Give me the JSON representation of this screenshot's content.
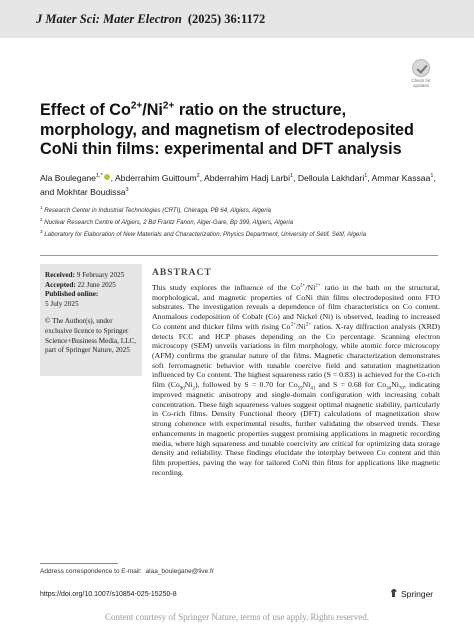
{
  "header": {
    "journal": "J Mater Sci: Mater Electron",
    "volume": "(2025) 36:1172"
  },
  "badge": {
    "icon": "check-for-updates-icon",
    "line1": "Check for",
    "line2": "updates"
  },
  "article": {
    "title_p1": "Effect of Co",
    "title_sup1": "2+",
    "title_p2": "/Ni",
    "title_sup2": "2+",
    "title_p3": " ratio on the structure, morphology, and magnetism of electrodeposited CoNi thin films: experimental and DFT analysis"
  },
  "authors": [
    {
      "name": "Ala Boulegane",
      "sup": "1,*"
    },
    {
      "name": "Abderrahim Guittoum",
      "sup": "2"
    },
    {
      "name": "Abderrahim Hadj Larbi",
      "sup": "1"
    },
    {
      "name": "Delloula Lakhdari",
      "sup": "1"
    },
    {
      "name": "Ammar Kassaa",
      "sup": "1"
    },
    {
      "name": "Mokhtar Boudissa",
      "sup": "3"
    }
  ],
  "authors_connector": ", and ",
  "affiliations": [
    {
      "num": "1",
      "text": "Research Center in Industrial Technologies (CRTI), Chéraga, PB 64, Algiers, Algeria"
    },
    {
      "num": "2",
      "text": "Nuclear Research Centre of Algiers, 2 Bd Frantz Fanon, Alger-Gare, Bp 399, Algiers, Algeria"
    },
    {
      "num": "3",
      "text": "Laboratory for Elaboration of New Materials and Characterization, Physics Department, University of Sétif, Sétif, Algeria"
    }
  ],
  "sidebar": {
    "received_label": "Received:",
    "received": "9 February 2025",
    "accepted_label": "Accepted:",
    "accepted": "22 June 2025",
    "published_label": "Published online:",
    "published": "5 July 2025",
    "copyright": "© The Author(s), under exclusive licence to Springer Science+Business Media, LLC, part of Springer Nature, 2025"
  },
  "abstract": {
    "heading": "ABSTRACT",
    "t1": "This study explores the influence of the Co",
    "s1": "2+",
    "t2": "/Ni",
    "s2": "2+",
    "t3": " ratio in the bath on the structural, morphological, and magnetic properties of CoNi thin films electrodeposited onto FTO substrates. The investigation reveals a dependence of film characteristics on Co content. Anomalous codeposition of Cobalt (Co) and Nickel (Ni) is observed, leading to increased Co content and thicker films with rising Co",
    "s3": "2+",
    "t4": "/Ni",
    "s4": "2+",
    "t5": " ratios. X-ray diffraction analysis (XRD) detects FCC and HCP phases depending on the Co percentage. Scanning electron microscopy (SEM) unveils variations in film morphology, while atomic force microscopy (AFM) confirms the granular nature of the films. Magnetic characterization demonstrates soft ferromagnetic behavior with tunable coercive field and saturation magnetization influenced by Co content. The highest squareness ratio (S = 0.83) is achieved for the Co-rich film (Co",
    "b1": "90",
    "t6": "Ni",
    "b2": "2",
    "t7": "), followed by S = 0.70 for Co",
    "b3": "59",
    "t8": "Ni",
    "b4": "41",
    "t9": " and S = 0.68 for Co",
    "b5": "30",
    "t10": "Ni",
    "b6": "70",
    "t11": ", indicating improved magnetic anisotropy and single-domain configuration with increasing cobalt concentration. These high squareness values suggest optimal magnetic stability, particularly in Co-rich films. Density Functional theory (DFT) calculations of magnetization show strong coherence with experimental results, further validating the observed trends. These enhancements in magnetic properties suggest promising applications in magnetic recording media, where high squareness and tunable coercivity are critical for optimizing data storage density and reliability. These findings elucidate the interplay between Co content and thin film properties, paving the way for tailored CoNi thin films for applications like magnetic recording."
  },
  "footer": {
    "address_label": "Address correspondence to E-mail:",
    "email": "alaa_boulegane@live.fr",
    "doi": "https://doi.org/10.1007/s10854-025-15250-8",
    "publisher": "Springer",
    "publisher_icon": "springer-horse-icon",
    "courtesy": "Content courtesy of Springer Nature, terms of use apply. Rights reserved."
  }
}
